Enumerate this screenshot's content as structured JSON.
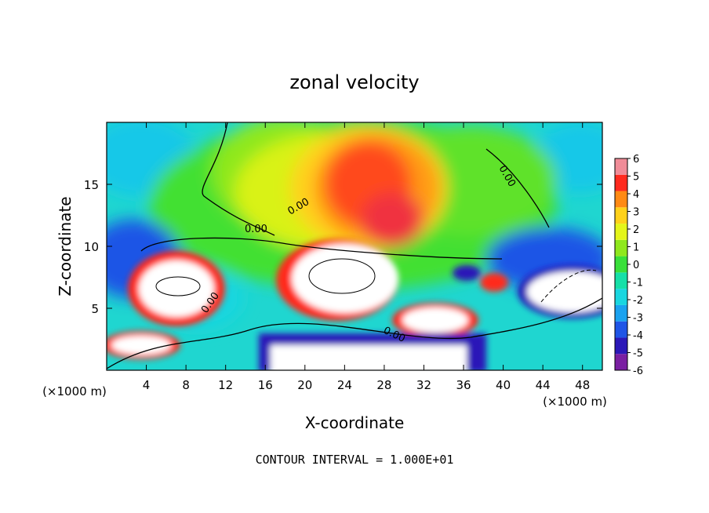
{
  "chart_data": {
    "type": "heatmap",
    "title": "zonal velocity",
    "xlabel": "X-coordinate",
    "ylabel": "Z-coordinate",
    "x_unit_label": "(×1000 m)",
    "x_unit_label_right": "(×1000 m)",
    "xlim": [
      0,
      50
    ],
    "ylim": [
      0,
      20
    ],
    "x_ticks": [
      4,
      8,
      12,
      16,
      20,
      24,
      28,
      32,
      36,
      40,
      44,
      48
    ],
    "y_ticks": [
      5,
      10,
      15
    ],
    "colorbar": {
      "min": -6,
      "max": 6,
      "ticks": [
        6,
        5,
        4,
        3,
        2,
        1,
        0,
        -1,
        -2,
        -3,
        -4,
        -5,
        -6
      ],
      "colors": [
        "#7a1fa2",
        "#2b18b8",
        "#1f55e6",
        "#1aa2f0",
        "#19d6e0",
        "#16e0a8",
        "#39e03a",
        "#8fe81d",
        "#e4f51a",
        "#ffd11a",
        "#ff8a14",
        "#ff2a1e",
        "#f08c98"
      ]
    },
    "contour_labels": [
      "0.00",
      "0.00",
      "0.00",
      "0.00",
      "0.00"
    ],
    "footer": "CONTOUR INTERVAL = 1.000E+01"
  }
}
